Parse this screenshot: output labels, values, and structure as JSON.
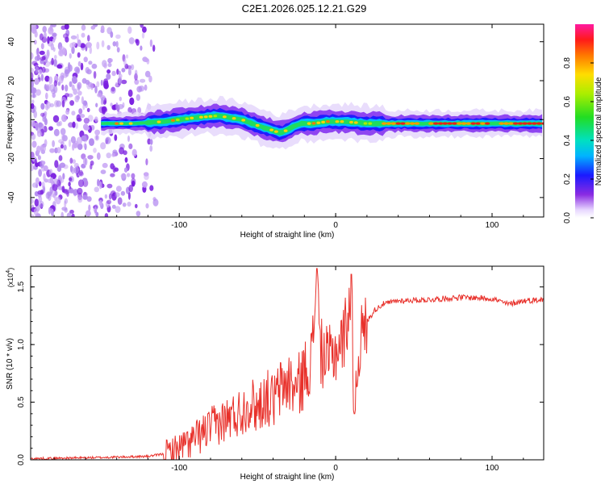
{
  "chart_data": [
    {
      "type": "heatmap",
      "title": "C2E1.2026.025.12.21.G29",
      "xlabel": "Height of straight line (km)",
      "ylabel": "Frequency (Hz)",
      "xlim": [
        -195,
        133
      ],
      "ylim": [
        -50,
        49
      ],
      "xticks": [
        -100,
        0,
        100
      ],
      "yticks": [
        -40,
        -20,
        0,
        20,
        40
      ],
      "colorbar": {
        "label": "Normalized spectral amplitude",
        "ticks": [
          "0.0",
          "0.2",
          "0.4",
          "0.6",
          "0.8"
        ],
        "range": [
          0,
          1
        ]
      },
      "description_series": {
        "name": "dominant frequency track",
        "x": [
          -150,
          -130,
          -110,
          -90,
          -75,
          -60,
          -50,
          -42,
          -35,
          -28,
          -22,
          -15,
          -5,
          5,
          20,
          40,
          60,
          80,
          100,
          120,
          133
        ],
        "y": [
          -2,
          -2,
          -1,
          1,
          2,
          0,
          -3,
          -5,
          -7,
          -4,
          -2,
          -2,
          -1,
          -1,
          -2,
          -2,
          -2,
          -2,
          -2,
          -2,
          -2
        ]
      }
    },
    {
      "type": "line",
      "xlabel": "Height of straight line (km)",
      "ylabel": "SNR (10 * v/v)",
      "yscale_label": "(x10",
      "yscale_exp": "4",
      "xlim": [
        -195,
        133
      ],
      "ylim": [
        0,
        1.68
      ],
      "xticks": [
        -100,
        0,
        100
      ],
      "yticks": [
        "0.0",
        "0.5",
        "1.0",
        "1.5"
      ],
      "series": [
        {
          "name": "SNR",
          "color": "#e8302a",
          "x": [
            -195,
            -150,
            -120,
            -110,
            -100,
            -90,
            -80,
            -70,
            -60,
            -55,
            -50,
            -45,
            -40,
            -35,
            -30,
            -25,
            -20,
            -15,
            -12,
            -10,
            -5,
            0,
            5,
            10,
            12,
            15,
            20,
            25,
            30,
            40,
            60,
            80,
            100,
            110,
            120,
            133
          ],
          "y": [
            0.01,
            0.02,
            0.03,
            0.05,
            0.1,
            0.18,
            0.28,
            0.35,
            0.42,
            0.5,
            0.45,
            0.55,
            0.5,
            0.62,
            0.68,
            0.6,
            0.75,
            0.9,
            1.66,
            0.95,
            0.85,
            0.95,
            1.05,
            1.45,
            0.4,
            1.0,
            1.2,
            1.3,
            1.35,
            1.38,
            1.39,
            1.41,
            1.4,
            1.35,
            1.38,
            1.39
          ]
        }
      ]
    }
  ]
}
